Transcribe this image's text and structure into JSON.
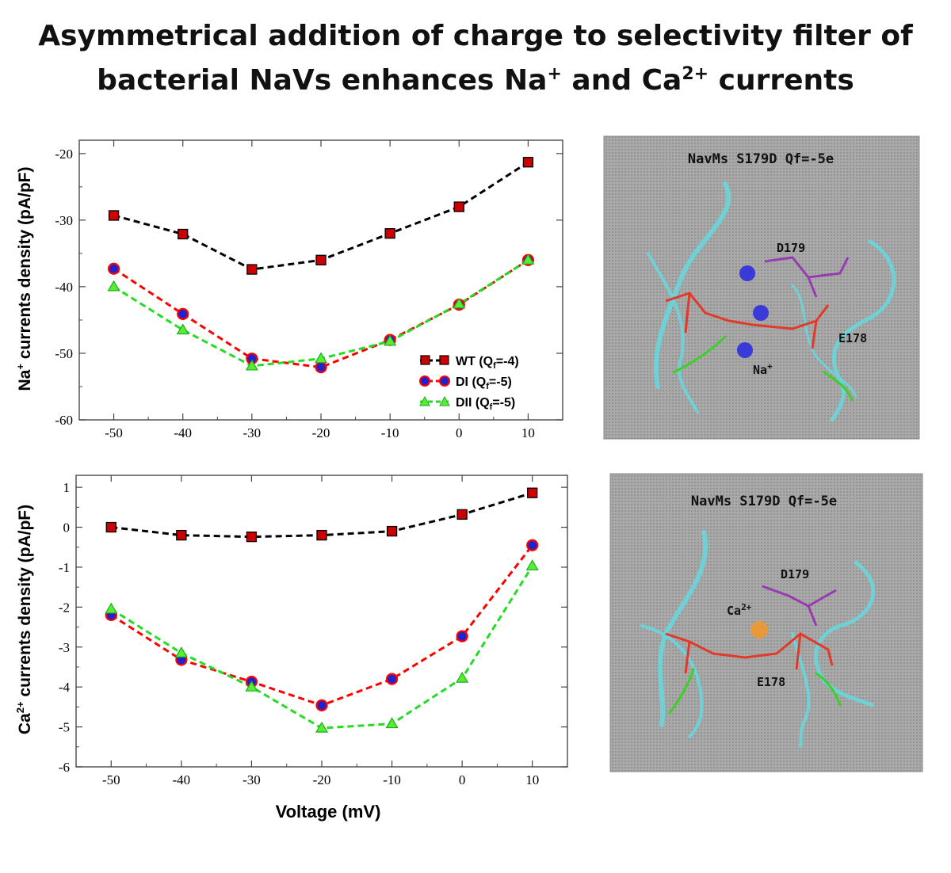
{
  "title": {
    "line1": "Asymmetrical addition of charge to selectivity filter of",
    "line2_pre": "bacterial NaVs enhances Na",
    "line2_sup1": "+",
    "line2_mid": " and Ca",
    "line2_sup2": "2+",
    "line2_post": " currents"
  },
  "xlabel": "Voltage (mV)",
  "chart_data": [
    {
      "type": "line",
      "ylabel_pre": "Na",
      "ylabel_sup": "+",
      "ylabel_post": " currents density (pA/pF)",
      "x": [
        -50,
        -40,
        -30,
        -20,
        -10,
        0,
        10
      ],
      "xlim": [
        -55,
        15
      ],
      "ylim": [
        -60,
        -18
      ],
      "xticks": [
        "-50",
        "-40",
        "-30",
        "-20",
        "-10",
        "0",
        "10"
      ],
      "yticks": [
        -60,
        -50,
        -40,
        -30,
        -20
      ],
      "legend_position": "bottom-right",
      "series": [
        {
          "name": "WT (Qf=-4)",
          "legend_main": "WT (Q",
          "legend_sub": "f",
          "legend_end": "=-4)",
          "color": "#000000",
          "marker": "square",
          "marker_fill": "#cc0000",
          "values": [
            -29.3,
            -32.1,
            -37.4,
            -36.0,
            -32.0,
            -28.0,
            -21.3
          ]
        },
        {
          "name": "DI (Qf=-5)",
          "legend_main": "DI (Q",
          "legend_sub": "f",
          "legend_end": "=-5)",
          "color": "#ff0000",
          "marker": "circle",
          "marker_fill": "#2222cc",
          "values": [
            -37.3,
            -44.1,
            -50.8,
            -52.1,
            -48.0,
            -42.7,
            -36.0
          ]
        },
        {
          "name": "DII (Qf=-5)",
          "legend_main": "DII (Q",
          "legend_sub": "f",
          "legend_end": "=-5)",
          "color": "#22dd22",
          "marker": "triangle",
          "marker_fill": "#55ee33",
          "values": [
            -40.0,
            -46.5,
            -51.9,
            -50.8,
            -48.2,
            -42.6,
            -36.0
          ]
        }
      ]
    },
    {
      "type": "line",
      "ylabel_pre": "Ca",
      "ylabel_sup": "2+",
      "ylabel_post": " currents density (pA/pF)",
      "x": [
        -50,
        -40,
        -30,
        -20,
        -10,
        0,
        10
      ],
      "xlim": [
        -55,
        15
      ],
      "ylim": [
        -6,
        1.3
      ],
      "xticks": [
        "-50",
        "-40",
        "-30",
        "-20",
        "-10",
        "0",
        "10"
      ],
      "yticks": [
        -6,
        -5,
        -4,
        -3,
        -2,
        -1,
        0,
        1
      ],
      "series": [
        {
          "name": "WT",
          "color": "#000000",
          "marker": "square",
          "marker_fill": "#cc0000",
          "values": [
            0.0,
            -0.2,
            -0.24,
            -0.2,
            -0.1,
            0.32,
            0.86
          ]
        },
        {
          "name": "DI",
          "color": "#ff0000",
          "marker": "circle",
          "marker_fill": "#2222cc",
          "values": [
            -2.2,
            -3.32,
            -3.87,
            -4.46,
            -3.8,
            -2.73,
            -0.45
          ]
        },
        {
          "name": "DII",
          "color": "#22dd22",
          "marker": "triangle",
          "marker_fill": "#55ee33",
          "values": [
            -2.05,
            -3.15,
            -4.0,
            -5.03,
            -4.92,
            -3.78,
            -0.97
          ]
        }
      ]
    }
  ],
  "structures": [
    {
      "title": "NavMs   S179D   Qf=-5e",
      "label_d": "D179",
      "label_e": "E178",
      "ion_pre": "Na",
      "ion_sup": "+"
    },
    {
      "title": "NavMs   S179D   Qf=-5e",
      "label_d": "D179",
      "label_e": "E178",
      "ion_pre": "Ca",
      "ion_sup": "2+"
    }
  ]
}
